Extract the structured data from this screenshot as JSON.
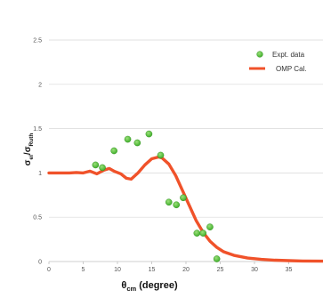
{
  "chart_data": {
    "type": "scatter",
    "xlabel_main": "θ",
    "xlabel_sub": "cm",
    "xlabel_unit": " (degree)",
    "ylabel_main": "σ",
    "ylabel_sub1": "el",
    "ylabel_slash": "/σ",
    "ylabel_sub2": "Ruth",
    "xlim": [
      0,
      40
    ],
    "ylim": [
      0,
      2.5
    ],
    "x_ticks": [
      "0",
      "5",
      "10",
      "15",
      "20",
      "25",
      "30",
      "35"
    ],
    "y_ticks": [
      "0",
      "0.5",
      "1",
      "1.5",
      "2",
      "2.5"
    ],
    "grid": "horizontal",
    "legend_position": "top-right",
    "colors": {
      "expt": "#3fae2a",
      "omp": "#f0522a",
      "grid": "#d9d9d9"
    },
    "series": [
      {
        "name": "Expt. data",
        "kind": "scatter",
        "points": [
          [
            6.8,
            1.09
          ],
          [
            7.8,
            1.06
          ],
          [
            9.5,
            1.25
          ],
          [
            11.5,
            1.38
          ],
          [
            12.9,
            1.34
          ],
          [
            14.6,
            1.44
          ],
          [
            16.3,
            1.2
          ],
          [
            17.5,
            0.67
          ],
          [
            18.6,
            0.64
          ],
          [
            19.6,
            0.72
          ],
          [
            21.6,
            0.32
          ],
          [
            22.5,
            0.32
          ],
          [
            23.5,
            0.39
          ],
          [
            24.5,
            0.03
          ]
        ]
      },
      {
        "name": "OMP Cal.",
        "kind": "line",
        "points": [
          [
            0,
            1.0
          ],
          [
            2,
            1.0
          ],
          [
            3,
            1.0
          ],
          [
            4,
            1.005
          ],
          [
            5,
            1.0
          ],
          [
            6,
            1.02
          ],
          [
            7,
            0.99
          ],
          [
            8,
            1.03
          ],
          [
            8.8,
            1.05
          ],
          [
            9.5,
            1.02
          ],
          [
            10.5,
            0.99
          ],
          [
            11.3,
            0.94
          ],
          [
            12,
            0.93
          ],
          [
            13,
            1.0
          ],
          [
            14,
            1.09
          ],
          [
            15,
            1.16
          ],
          [
            16,
            1.18
          ],
          [
            16.5,
            1.17
          ],
          [
            17.5,
            1.1
          ],
          [
            18.5,
            0.97
          ],
          [
            19.5,
            0.8
          ],
          [
            20.5,
            0.63
          ],
          [
            21.5,
            0.46
          ],
          [
            22.5,
            0.33
          ],
          [
            23.5,
            0.23
          ],
          [
            24.5,
            0.16
          ],
          [
            25.5,
            0.11
          ],
          [
            27,
            0.07
          ],
          [
            29,
            0.04
          ],
          [
            31,
            0.025
          ],
          [
            33,
            0.015
          ],
          [
            35,
            0.01
          ],
          [
            37,
            0.006
          ],
          [
            40,
            0.004
          ]
        ]
      }
    ]
  }
}
